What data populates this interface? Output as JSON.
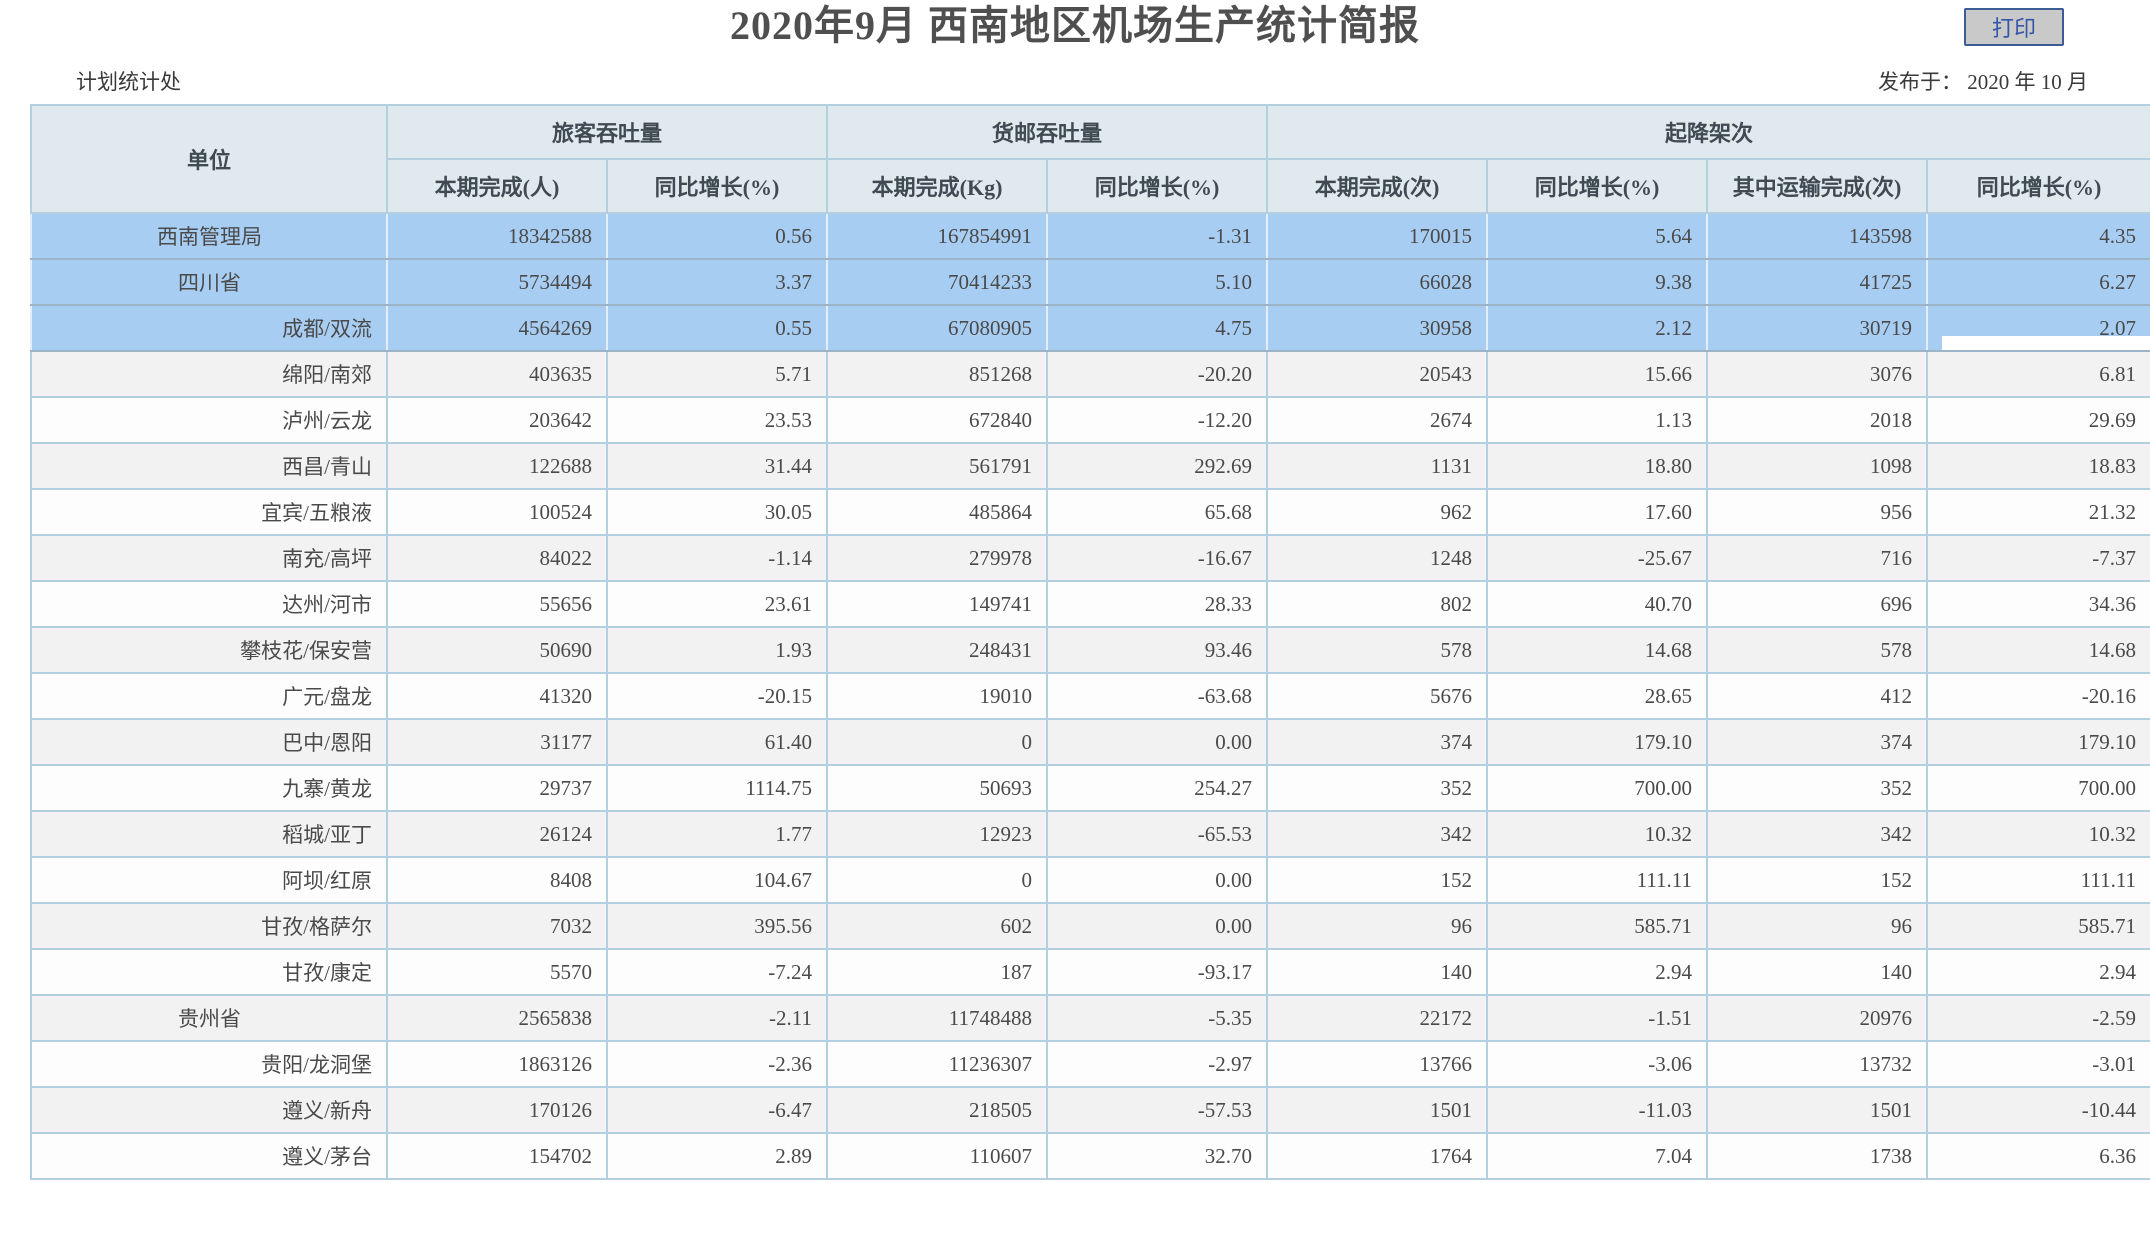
{
  "page": {
    "title": "2020年9月 西南地区机场生产统计简报",
    "print_button_label": "打印",
    "dept": "计划统计处",
    "published": "发布于： 2020 年 10 月"
  },
  "colors": {
    "highlight_row": "#a8cdf2",
    "header_bg": "#dfe9ee",
    "zebra_gray": "#f2f2f2",
    "table_border": "#b4cfdf",
    "button_border": "#3d5b95",
    "button_text": "#3356a8",
    "button_bg": "#c9c9c9"
  },
  "table": {
    "columns": {
      "unit": "单位",
      "groups": [
        {
          "label": "旅客吞吐量",
          "subs": [
            "本期完成(人)",
            "同比增长(%)"
          ]
        },
        {
          "label": "货邮吞吐量",
          "subs": [
            "本期完成(Kg)",
            "同比增长(%)"
          ]
        },
        {
          "label": "起降架次",
          "subs": [
            "本期完成(次)",
            "同比增长(%)",
            "其中运输完成(次)",
            "同比增长(%)"
          ]
        }
      ]
    },
    "rows": [
      {
        "unit": "西南管理局",
        "align": "center",
        "highlight": true,
        "values": [
          "18342588",
          "0.56",
          "167854991",
          "-1.31",
          "170015",
          "5.64",
          "143598",
          "4.35"
        ]
      },
      {
        "unit": "四川省",
        "align": "center",
        "highlight": true,
        "values": [
          "5734494",
          "3.37",
          "70414233",
          "5.10",
          "66028",
          "9.38",
          "41725",
          "6.27"
        ]
      },
      {
        "unit": "成都/双流",
        "align": "right",
        "highlight": true,
        "selected_last_cell": true,
        "values": [
          "4564269",
          "0.55",
          "67080905",
          "4.75",
          "30958",
          "2.12",
          "30719",
          "2.07"
        ]
      },
      {
        "unit": "绵阳/南郊",
        "align": "right",
        "values": [
          "403635",
          "5.71",
          "851268",
          "-20.20",
          "20543",
          "15.66",
          "3076",
          "6.81"
        ]
      },
      {
        "unit": "泸州/云龙",
        "align": "right",
        "values": [
          "203642",
          "23.53",
          "672840",
          "-12.20",
          "2674",
          "1.13",
          "2018",
          "29.69"
        ]
      },
      {
        "unit": "西昌/青山",
        "align": "right",
        "values": [
          "122688",
          "31.44",
          "561791",
          "292.69",
          "1131",
          "18.80",
          "1098",
          "18.83"
        ]
      },
      {
        "unit": "宜宾/五粮液",
        "align": "right",
        "values": [
          "100524",
          "30.05",
          "485864",
          "65.68",
          "962",
          "17.60",
          "956",
          "21.32"
        ]
      },
      {
        "unit": "南充/高坪",
        "align": "right",
        "values": [
          "84022",
          "-1.14",
          "279978",
          "-16.67",
          "1248",
          "-25.67",
          "716",
          "-7.37"
        ]
      },
      {
        "unit": "达州/河市",
        "align": "right",
        "values": [
          "55656",
          "23.61",
          "149741",
          "28.33",
          "802",
          "40.70",
          "696",
          "34.36"
        ]
      },
      {
        "unit": "攀枝花/保安营",
        "align": "right",
        "values": [
          "50690",
          "1.93",
          "248431",
          "93.46",
          "578",
          "14.68",
          "578",
          "14.68"
        ]
      },
      {
        "unit": "广元/盘龙",
        "align": "right",
        "values": [
          "41320",
          "-20.15",
          "19010",
          "-63.68",
          "5676",
          "28.65",
          "412",
          "-20.16"
        ]
      },
      {
        "unit": "巴中/恩阳",
        "align": "right",
        "values": [
          "31177",
          "61.40",
          "0",
          "0.00",
          "374",
          "179.10",
          "374",
          "179.10"
        ]
      },
      {
        "unit": "九寨/黄龙",
        "align": "right",
        "values": [
          "29737",
          "1114.75",
          "50693",
          "254.27",
          "352",
          "700.00",
          "352",
          "700.00"
        ]
      },
      {
        "unit": "稻城/亚丁",
        "align": "right",
        "values": [
          "26124",
          "1.77",
          "12923",
          "-65.53",
          "342",
          "10.32",
          "342",
          "10.32"
        ]
      },
      {
        "unit": "阿坝/红原",
        "align": "right",
        "values": [
          "8408",
          "104.67",
          "0",
          "0.00",
          "152",
          "111.11",
          "152",
          "111.11"
        ]
      },
      {
        "unit": "甘孜/格萨尔",
        "align": "right",
        "values": [
          "7032",
          "395.56",
          "602",
          "0.00",
          "96",
          "585.71",
          "96",
          "585.71"
        ]
      },
      {
        "unit": "甘孜/康定",
        "align": "right",
        "values": [
          "5570",
          "-7.24",
          "187",
          "-93.17",
          "140",
          "2.94",
          "140",
          "2.94"
        ]
      },
      {
        "unit": "贵州省",
        "align": "center",
        "values": [
          "2565838",
          "-2.11",
          "11748488",
          "-5.35",
          "22172",
          "-1.51",
          "20976",
          "-2.59"
        ]
      },
      {
        "unit": "贵阳/龙洞堡",
        "align": "right",
        "values": [
          "1863126",
          "-2.36",
          "11236307",
          "-2.97",
          "13766",
          "-3.06",
          "13732",
          "-3.01"
        ]
      },
      {
        "unit": "遵义/新舟",
        "align": "right",
        "values": [
          "170126",
          "-6.47",
          "218505",
          "-57.53",
          "1501",
          "-11.03",
          "1501",
          "-10.44"
        ]
      },
      {
        "unit": "遵义/茅台",
        "align": "right",
        "values": [
          "154702",
          "2.89",
          "110607",
          "32.70",
          "1764",
          "7.04",
          "1738",
          "6.36"
        ]
      }
    ]
  }
}
